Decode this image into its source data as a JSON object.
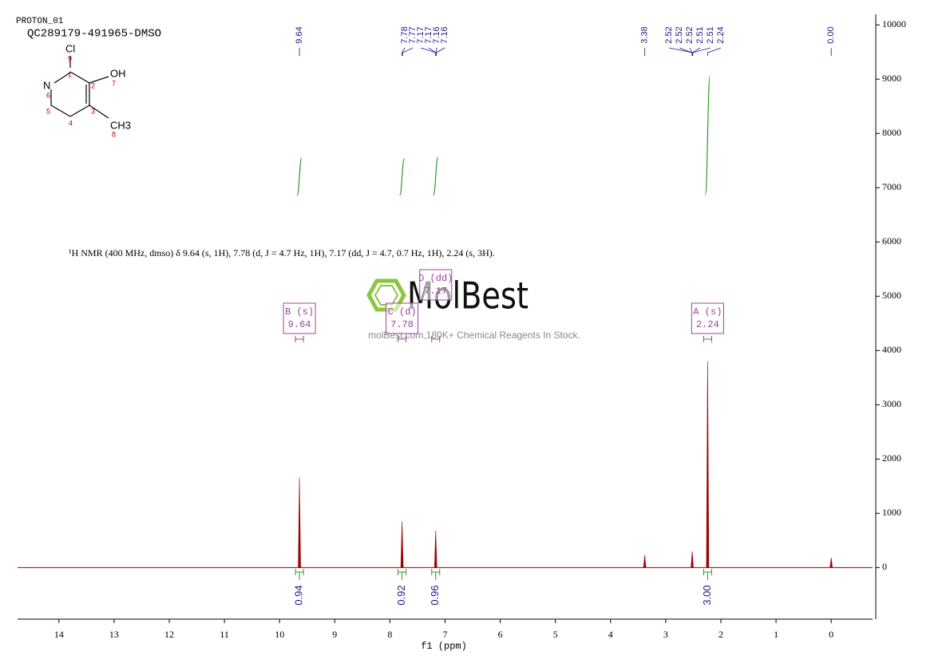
{
  "chart_data": {
    "type": "nmr",
    "title": "PROTON_01",
    "subtitle": "QC289179-491965-DMSO",
    "x_label": "f1 (ppm)",
    "xlim": [
      14.75,
      -0.75
    ],
    "xticks": [
      14,
      13,
      12,
      11,
      10,
      9,
      8,
      7,
      6,
      5,
      4,
      3,
      2,
      1,
      0
    ],
    "ylim": [
      -950,
      10150
    ],
    "yticks": [
      0,
      1000,
      2000,
      3000,
      4000,
      5000,
      6000,
      7000,
      8000,
      9000,
      10000
    ],
    "color": "#a00000",
    "peaks": {
      "x": [
        9.64,
        7.78,
        7.17,
        3.38,
        2.52,
        2.24,
        0.0
      ],
      "values": [
        1660,
        850,
        680,
        230,
        300,
        3800,
        180
      ]
    },
    "peak_labels": [
      9.64,
      7.78,
      7.77,
      7.17,
      7.17,
      7.16,
      7.16,
      3.38,
      2.52,
      2.52,
      2.52,
      2.51,
      2.51,
      2.24,
      {
        "value": 0,
        "label": "0.00"
      }
    ],
    "peak_label_color": "#1a1a8c",
    "integrals": {
      "x": [
        9.64,
        7.78,
        7.17,
        2.24
      ],
      "values": [
        0.94,
        0.92,
        0.96,
        3
      ],
      "value_labels": [
        "0.94",
        "0.92",
        "0.96",
        "3.00"
      ],
      "color": "#2a9a2a"
    },
    "multiplets": [
      {
        "label": "B (s)",
        "shift": 9.64
      },
      {
        "label": "C (d)",
        "shift": 7.78
      },
      {
        "label": "D (dd)",
        "shift": 7.17
      },
      {
        "label": "A (s)",
        "shift": 2.24
      }
    ],
    "multiplet_color": "#a040a0",
    "description": "¹H NMR (400 MHz, dmso) δ 9.64 (s, 1H), 7.78 (d, J = 4.7 Hz, 1H), 7.17 (dd, J = 4.7, 0.7 Hz, 1H), 2.24 (s, 3H).",
    "structure": {
      "atoms": [
        "Cl",
        "OH",
        "N",
        "CH3"
      ],
      "numbers": [
        "9",
        "1",
        "2",
        "7",
        "6",
        "5",
        "4",
        "3",
        "8"
      ]
    },
    "watermark": {
      "brand": "MolBest",
      "tagline": "molBest.com,180K+ Chemical Reagents In Stock."
    }
  }
}
